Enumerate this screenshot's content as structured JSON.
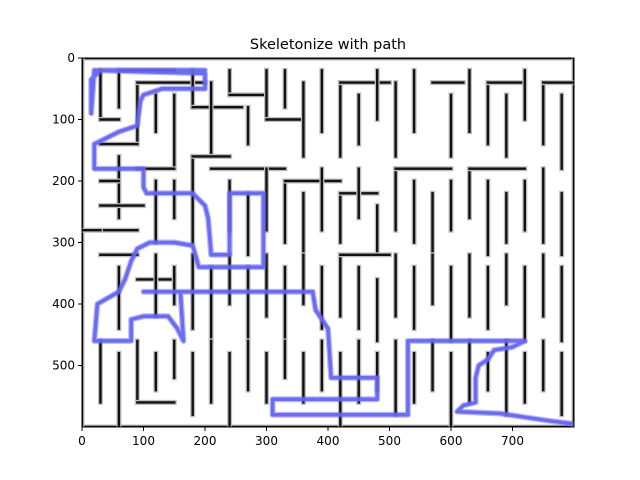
{
  "chart_data": {
    "type": "image",
    "title": "Skeletonize with path",
    "xlim": [
      0,
      800
    ],
    "ylim": [
      600,
      0
    ],
    "x_ticks": [
      0,
      100,
      200,
      300,
      400,
      500,
      600,
      700
    ],
    "y_ticks": [
      0,
      100,
      200,
      300,
      400,
      500
    ],
    "path_color": "#6464f0",
    "wall_color": "#111111",
    "maze_walls": [
      [
        [
          0,
          0
        ],
        [
          800,
          0
        ]
      ],
      [
        [
          0,
          600
        ],
        [
          800,
          600
        ]
      ],
      [
        [
          0,
          0
        ],
        [
          0,
          600
        ]
      ],
      [
        [
          800,
          0
        ],
        [
          800,
          600
        ]
      ],
      [
        [
          30,
          20
        ],
        [
          30,
          100
        ]
      ],
      [
        [
          30,
          100
        ],
        [
          60,
          100
        ]
      ],
      [
        [
          60,
          20
        ],
        [
          60,
          80
        ]
      ],
      [
        [
          60,
          20
        ],
        [
          150,
          20
        ]
      ],
      [
        [
          90,
          40
        ],
        [
          90,
          140
        ]
      ],
      [
        [
          90,
          40
        ],
        [
          200,
          40
        ]
      ],
      [
        [
          120,
          60
        ],
        [
          120,
          120
        ]
      ],
      [
        [
          150,
          60
        ],
        [
          150,
          180
        ]
      ],
      [
        [
          180,
          20
        ],
        [
          180,
          80
        ]
      ],
      [
        [
          180,
          80
        ],
        [
          260,
          80
        ]
      ],
      [
        [
          210,
          40
        ],
        [
          210,
          160
        ]
      ],
      [
        [
          240,
          20
        ],
        [
          240,
          60
        ]
      ],
      [
        [
          240,
          60
        ],
        [
          300,
          60
        ]
      ],
      [
        [
          270,
          80
        ],
        [
          270,
          140
        ]
      ],
      [
        [
          300,
          20
        ],
        [
          300,
          100
        ]
      ],
      [
        [
          300,
          100
        ],
        [
          360,
          100
        ]
      ],
      [
        [
          330,
          20
        ],
        [
          330,
          80
        ]
      ],
      [
        [
          360,
          40
        ],
        [
          360,
          160
        ]
      ],
      [
        [
          390,
          20
        ],
        [
          390,
          120
        ]
      ],
      [
        [
          420,
          40
        ],
        [
          420,
          160
        ]
      ],
      [
        [
          420,
          40
        ],
        [
          500,
          40
        ]
      ],
      [
        [
          450,
          60
        ],
        [
          450,
          140
        ]
      ],
      [
        [
          480,
          20
        ],
        [
          480,
          100
        ]
      ],
      [
        [
          510,
          40
        ],
        [
          510,
          160
        ]
      ],
      [
        [
          540,
          20
        ],
        [
          540,
          120
        ]
      ],
      [
        [
          570,
          40
        ],
        [
          620,
          40
        ]
      ],
      [
        [
          600,
          60
        ],
        [
          600,
          160
        ]
      ],
      [
        [
          630,
          20
        ],
        [
          630,
          120
        ]
      ],
      [
        [
          660,
          40
        ],
        [
          660,
          140
        ]
      ],
      [
        [
          660,
          40
        ],
        [
          720,
          40
        ]
      ],
      [
        [
          690,
          60
        ],
        [
          690,
          160
        ]
      ],
      [
        [
          720,
          20
        ],
        [
          720,
          100
        ]
      ],
      [
        [
          750,
          40
        ],
        [
          750,
          140
        ]
      ],
      [
        [
          750,
          40
        ],
        [
          800,
          40
        ]
      ],
      [
        [
          780,
          60
        ],
        [
          780,
          180
        ]
      ],
      [
        [
          30,
          140
        ],
        [
          90,
          140
        ]
      ],
      [
        [
          60,
          160
        ],
        [
          60,
          260
        ]
      ],
      [
        [
          90,
          180
        ],
        [
          150,
          180
        ]
      ],
      [
        [
          120,
          200
        ],
        [
          120,
          300
        ]
      ],
      [
        [
          30,
          200
        ],
        [
          60,
          200
        ]
      ],
      [
        [
          30,
          240
        ],
        [
          100,
          240
        ]
      ],
      [
        [
          30,
          280
        ],
        [
          90,
          280
        ]
      ],
      [
        [
          150,
          200
        ],
        [
          150,
          260
        ]
      ],
      [
        [
          180,
          160
        ],
        [
          180,
          300
        ]
      ],
      [
        [
          180,
          160
        ],
        [
          240,
          160
        ]
      ],
      [
        [
          210,
          180
        ],
        [
          330,
          180
        ]
      ],
      [
        [
          240,
          200
        ],
        [
          240,
          280
        ]
      ],
      [
        [
          270,
          220
        ],
        [
          270,
          320
        ]
      ],
      [
        [
          300,
          180
        ],
        [
          300,
          280
        ]
      ],
      [
        [
          330,
          200
        ],
        [
          330,
          300
        ]
      ],
      [
        [
          330,
          200
        ],
        [
          420,
          200
        ]
      ],
      [
        [
          360,
          220
        ],
        [
          360,
          320
        ]
      ],
      [
        [
          390,
          180
        ],
        [
          390,
          280
        ]
      ],
      [
        [
          420,
          220
        ],
        [
          420,
          300
        ]
      ],
      [
        [
          420,
          220
        ],
        [
          480,
          220
        ]
      ],
      [
        [
          450,
          180
        ],
        [
          450,
          260
        ]
      ],
      [
        [
          480,
          240
        ],
        [
          480,
          320
        ]
      ],
      [
        [
          510,
          180
        ],
        [
          510,
          280
        ]
      ],
      [
        [
          510,
          180
        ],
        [
          600,
          180
        ]
      ],
      [
        [
          540,
          200
        ],
        [
          540,
          300
        ]
      ],
      [
        [
          570,
          220
        ],
        [
          570,
          320
        ]
      ],
      [
        [
          600,
          200
        ],
        [
          600,
          280
        ]
      ],
      [
        [
          630,
          180
        ],
        [
          630,
          260
        ]
      ],
      [
        [
          630,
          180
        ],
        [
          720,
          180
        ]
      ],
      [
        [
          660,
          200
        ],
        [
          660,
          320
        ]
      ],
      [
        [
          690,
          220
        ],
        [
          690,
          300
        ]
      ],
      [
        [
          720,
          200
        ],
        [
          720,
          280
        ]
      ],
      [
        [
          750,
          180
        ],
        [
          750,
          300
        ]
      ],
      [
        [
          780,
          220
        ],
        [
          780,
          320
        ]
      ],
      [
        [
          30,
          320
        ],
        [
          90,
          320
        ]
      ],
      [
        [
          0,
          280
        ],
        [
          30,
          280
        ]
      ],
      [
        [
          60,
          340
        ],
        [
          60,
          440
        ]
      ],
      [
        [
          90,
          360
        ],
        [
          150,
          360
        ]
      ],
      [
        [
          120,
          320
        ],
        [
          120,
          420
        ]
      ],
      [
        [
          150,
          340
        ],
        [
          150,
          400
        ]
      ],
      [
        [
          180,
          320
        ],
        [
          180,
          440
        ]
      ],
      [
        [
          210,
          340
        ],
        [
          210,
          460
        ]
      ],
      [
        [
          240,
          320
        ],
        [
          240,
          400
        ]
      ],
      [
        [
          270,
          340
        ],
        [
          270,
          460
        ]
      ],
      [
        [
          300,
          320
        ],
        [
          300,
          420
        ]
      ],
      [
        [
          330,
          340
        ],
        [
          330,
          460
        ]
      ],
      [
        [
          360,
          320
        ],
        [
          360,
          400
        ]
      ],
      [
        [
          390,
          340
        ],
        [
          390,
          440
        ]
      ],
      [
        [
          420,
          320
        ],
        [
          420,
          420
        ]
      ],
      [
        [
          420,
          320
        ],
        [
          500,
          320
        ]
      ],
      [
        [
          450,
          340
        ],
        [
          450,
          440
        ]
      ],
      [
        [
          480,
          360
        ],
        [
          480,
          460
        ]
      ],
      [
        [
          510,
          320
        ],
        [
          510,
          420
        ]
      ],
      [
        [
          540,
          340
        ],
        [
          540,
          440
        ]
      ],
      [
        [
          570,
          320
        ],
        [
          570,
          400
        ]
      ],
      [
        [
          600,
          340
        ],
        [
          600,
          460
        ]
      ],
      [
        [
          630,
          320
        ],
        [
          630,
          420
        ]
      ],
      [
        [
          660,
          340
        ],
        [
          660,
          440
        ]
      ],
      [
        [
          690,
          320
        ],
        [
          690,
          400
        ]
      ],
      [
        [
          720,
          340
        ],
        [
          720,
          460
        ]
      ],
      [
        [
          750,
          320
        ],
        [
          750,
          420
        ]
      ],
      [
        [
          780,
          340
        ],
        [
          780,
          460
        ]
      ],
      [
        [
          30,
          460
        ],
        [
          30,
          560
        ]
      ],
      [
        [
          60,
          480
        ],
        [
          60,
          600
        ]
      ],
      [
        [
          90,
          460
        ],
        [
          90,
          560
        ]
      ],
      [
        [
          90,
          560
        ],
        [
          150,
          560
        ]
      ],
      [
        [
          120,
          480
        ],
        [
          120,
          540
        ]
      ],
      [
        [
          150,
          460
        ],
        [
          150,
          520
        ]
      ],
      [
        [
          180,
          480
        ],
        [
          180,
          580
        ]
      ],
      [
        [
          210,
          460
        ],
        [
          210,
          560
        ]
      ],
      [
        [
          240,
          480
        ],
        [
          240,
          600
        ]
      ],
      [
        [
          270,
          460
        ],
        [
          270,
          540
        ]
      ],
      [
        [
          300,
          480
        ],
        [
          300,
          560
        ]
      ],
      [
        [
          330,
          460
        ],
        [
          330,
          520
        ]
      ],
      [
        [
          360,
          480
        ],
        [
          360,
          560
        ]
      ],
      [
        [
          390,
          460
        ],
        [
          390,
          540
        ]
      ],
      [
        [
          420,
          480
        ],
        [
          420,
          600
        ]
      ],
      [
        [
          450,
          460
        ],
        [
          450,
          560
        ]
      ],
      [
        [
          480,
          480
        ],
        [
          480,
          540
        ]
      ],
      [
        [
          510,
          460
        ],
        [
          510,
          580
        ]
      ],
      [
        [
          540,
          480
        ],
        [
          540,
          560
        ]
      ],
      [
        [
          570,
          460
        ],
        [
          570,
          540
        ]
      ],
      [
        [
          600,
          480
        ],
        [
          600,
          600
        ]
      ],
      [
        [
          630,
          460
        ],
        [
          630,
          560
        ]
      ],
      [
        [
          660,
          480
        ],
        [
          660,
          540
        ]
      ],
      [
        [
          690,
          460
        ],
        [
          690,
          580
        ]
      ],
      [
        [
          720,
          480
        ],
        [
          720,
          560
        ]
      ],
      [
        [
          750,
          460
        ],
        [
          750,
          540
        ]
      ],
      [
        [
          780,
          480
        ],
        [
          780,
          580
        ]
      ]
    ],
    "solution_path": [
      [
        200,
        20
      ],
      [
        30,
        20
      ],
      [
        15,
        35
      ],
      [
        15,
        90
      ],
      [
        15,
        90
      ],
      [
        20,
        20
      ],
      [
        200,
        25
      ],
      [
        200,
        50
      ],
      [
        130,
        50
      ],
      [
        100,
        60
      ],
      [
        95,
        70
      ],
      [
        90,
        110
      ],
      [
        60,
        120
      ],
      [
        30,
        135
      ],
      [
        20,
        140
      ],
      [
        20,
        180
      ],
      [
        100,
        180
      ],
      [
        100,
        210
      ],
      [
        105,
        220
      ],
      [
        180,
        220
      ],
      [
        190,
        230
      ],
      [
        200,
        240
      ],
      [
        205,
        260
      ],
      [
        210,
        320
      ],
      [
        240,
        320
      ],
      [
        240,
        220
      ],
      [
        295,
        220
      ],
      [
        295,
        340
      ],
      [
        190,
        340
      ],
      [
        180,
        305
      ],
      [
        150,
        300
      ],
      [
        110,
        300
      ],
      [
        90,
        310
      ],
      [
        80,
        330
      ],
      [
        70,
        360
      ],
      [
        60,
        380
      ],
      [
        25,
        400
      ],
      [
        20,
        460
      ],
      [
        80,
        460
      ],
      [
        80,
        425
      ],
      [
        100,
        420
      ],
      [
        140,
        420
      ],
      [
        155,
        440
      ],
      [
        165,
        460
      ],
      [
        160,
        380
      ],
      [
        100,
        380
      ],
      [
        375,
        380
      ],
      [
        380,
        410
      ],
      [
        400,
        440
      ],
      [
        405,
        520
      ],
      [
        480,
        520
      ],
      [
        480,
        555
      ],
      [
        310,
        555
      ],
      [
        310,
        580
      ],
      [
        530,
        580
      ],
      [
        530,
        460
      ],
      [
        720,
        460
      ],
      [
        700,
        470
      ],
      [
        670,
        475
      ],
      [
        660,
        490
      ],
      [
        645,
        500
      ],
      [
        640,
        520
      ],
      [
        640,
        560
      ],
      [
        620,
        565
      ],
      [
        610,
        575
      ],
      [
        680,
        578
      ],
      [
        720,
        584
      ],
      [
        760,
        590
      ],
      [
        800,
        595
      ]
    ]
  }
}
